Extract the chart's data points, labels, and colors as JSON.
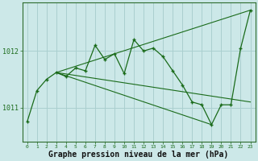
{
  "background_color": "#cce8e8",
  "grid_color": "#aacfcf",
  "line_color": "#1a6b1a",
  "xlabel": "Graphe pression niveau de la mer (hPa)",
  "xlabel_fontsize": 7,
  "ylabel_ticks": [
    1011,
    1012
  ],
  "xlim": [
    -0.5,
    23.5
  ],
  "ylim": [
    1010.4,
    1012.85
  ],
  "xticks": [
    0,
    1,
    2,
    3,
    4,
    5,
    6,
    7,
    8,
    9,
    10,
    11,
    12,
    13,
    14,
    15,
    16,
    17,
    18,
    19,
    20,
    21,
    22,
    23
  ],
  "curve1_x": [
    0,
    1,
    2,
    3,
    4,
    5,
    6,
    7,
    8,
    9,
    10,
    11,
    12,
    13,
    14,
    15,
    16,
    17,
    18,
    19,
    20,
    21,
    22,
    23
  ],
  "curve1_y": [
    1010.75,
    1011.3,
    1011.5,
    1011.62,
    1011.55,
    1011.7,
    1011.65,
    1012.1,
    1011.85,
    1011.95,
    1011.6,
    1012.2,
    1012.0,
    1012.05,
    1011.9,
    1011.65,
    1011.4,
    1011.1,
    1011.05,
    1010.7,
    1011.05,
    1011.05,
    1012.05,
    1012.72
  ],
  "line1_x": [
    3,
    23
  ],
  "line1_y": [
    1011.62,
    1012.72
  ],
  "line2_x": [
    3,
    19
  ],
  "line2_y": [
    1011.62,
    1010.7
  ],
  "line3_x": [
    3,
    23
  ],
  "line3_y": [
    1011.62,
    1011.1
  ]
}
